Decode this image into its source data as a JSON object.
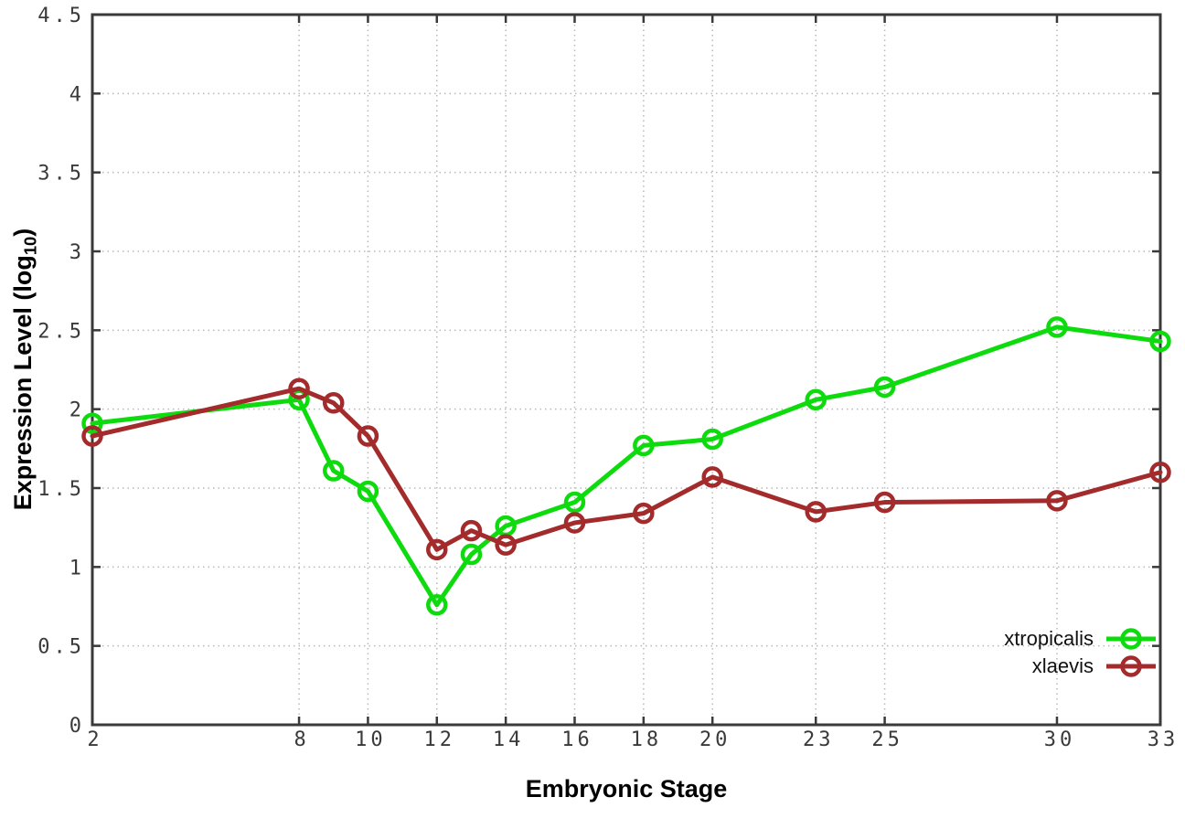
{
  "chart_data": {
    "type": "line",
    "title": "",
    "xlabel": "Embryonic Stage",
    "ylabel": "Expression Level (log10)",
    "ylabel_parts": {
      "prefix": "Expression Level (log",
      "subscript": "10",
      "suffix": ")"
    },
    "xlim": [
      2,
      33
    ],
    "ylim": [
      0,
      4.5
    ],
    "grid": true,
    "legend_position": "inside bottom-right",
    "x": [
      2,
      8,
      9,
      10,
      12,
      13,
      14,
      16,
      18,
      20,
      23,
      25,
      30,
      33
    ],
    "x_tick_values": [
      2,
      8,
      10,
      12,
      14,
      16,
      18,
      20,
      23,
      25,
      30,
      33
    ],
    "x_tick_labels": [
      "2",
      "8",
      "10",
      "12",
      "14",
      "16",
      "18",
      "20",
      "23",
      "25",
      "30",
      "33"
    ],
    "y_tick_values": [
      0,
      0.5,
      1,
      1.5,
      2,
      2.5,
      3,
      3.5,
      4,
      4.5
    ],
    "y_tick_labels": [
      "0",
      "0.5",
      "1",
      "1.5",
      "2",
      "2.5",
      "3",
      "3.5",
      "4",
      "4.5"
    ],
    "series": [
      {
        "name": "xtropicalis",
        "color": "#0edb0e",
        "marker": "open-circle",
        "values": [
          1.91,
          2.06,
          1.61,
          1.48,
          0.76,
          1.08,
          1.26,
          1.41,
          1.77,
          1.81,
          2.06,
          2.14,
          2.52,
          2.43
        ]
      },
      {
        "name": "xlaevis",
        "color": "#a32b2b",
        "marker": "open-circle",
        "values": [
          1.83,
          2.13,
          2.04,
          1.83,
          1.11,
          1.23,
          1.14,
          1.28,
          1.34,
          1.57,
          1.35,
          1.41,
          1.42,
          1.6
        ]
      }
    ],
    "axis_color": "#3a3a3a",
    "grid_color": "#b9b9b9",
    "background": "#ffffff"
  }
}
